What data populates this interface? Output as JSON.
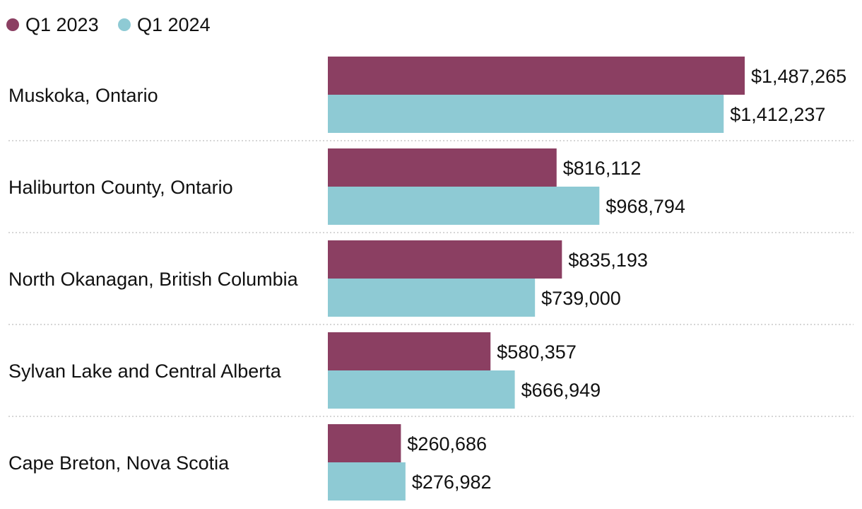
{
  "chart_data": {
    "type": "bar",
    "orientation": "horizontal",
    "title": "",
    "xlabel": "",
    "ylabel": "",
    "legend_position": "top-left",
    "grid": false,
    "xlim": [
      0,
      1600000
    ],
    "categories": [
      "Muskoka, Ontario",
      "Haliburton County, Ontario",
      "North Okanagan, British Columbia",
      "Sylvan Lake and Central Alberta",
      "Cape Breton, Nova Scotia"
    ],
    "series": [
      {
        "name": "Q1 2023",
        "color": "#8b3f62",
        "values": [
          1487265,
          816112,
          835193,
          580357,
          260686
        ],
        "labels": [
          "$1,487,265",
          "$816,112",
          "$835,193",
          "$580,357",
          "$260,686"
        ]
      },
      {
        "name": "Q1 2024",
        "color": "#8ecad4",
        "values": [
          1412237,
          968794,
          739000,
          666949,
          276982
        ],
        "labels": [
          "$1,412,237",
          "$968,794",
          "$739,000",
          "$666,949",
          "$276,982"
        ]
      }
    ]
  }
}
